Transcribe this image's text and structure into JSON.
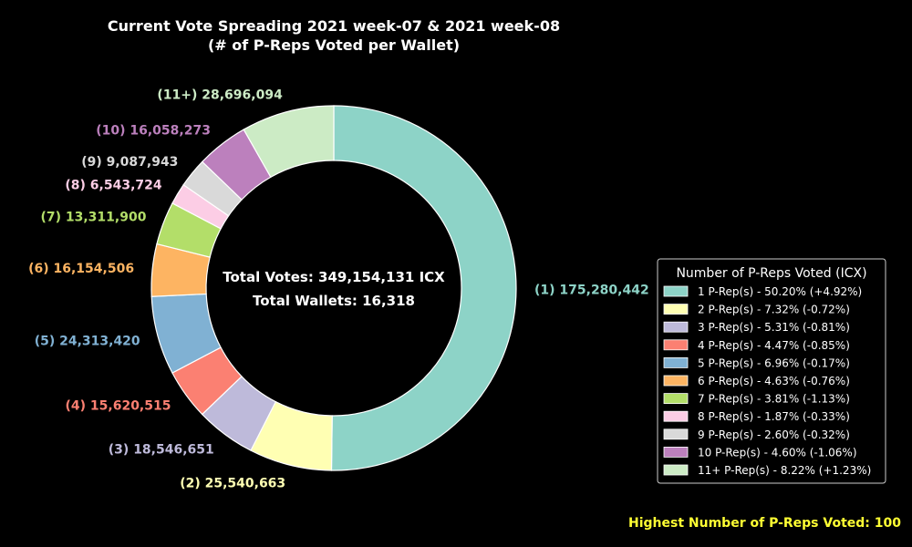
{
  "chart_data": {
    "type": "pie",
    "style": "donut",
    "title_lines": [
      "Current Vote Spreading 2021 week-07 & 2021 week-08",
      "(# of P-Reps Voted per Wallet)"
    ],
    "center_lines": [
      "Total Votes: 349,154,131 ICX",
      "Total Wallets: 16,318"
    ],
    "slices": [
      {
        "label": "(1) 175,280,442",
        "value": 175280442,
        "color": "#8dd3c7",
        "legend": "1 P-Rep(s) - 50.20% (+4.92%)"
      },
      {
        "label": "(2) 25,540,663",
        "value": 25540663,
        "color": "#ffffb3",
        "legend": "2 P-Rep(s) - 7.32% (-0.72%)"
      },
      {
        "label": "(3) 18,546,651",
        "value": 18546651,
        "color": "#bebada",
        "legend": "3 P-Rep(s) - 5.31% (-0.81%)"
      },
      {
        "label": "(4) 15,620,515",
        "value": 15620515,
        "color": "#fb8072",
        "legend": "4 P-Rep(s) - 4.47% (-0.85%)"
      },
      {
        "label": "(5) 24,313,420",
        "value": 24313420,
        "color": "#80b1d3",
        "legend": "5 P-Rep(s) - 6.96% (-0.17%)"
      },
      {
        "label": "(6) 16,154,506",
        "value": 16154506,
        "color": "#fdb462",
        "legend": "6 P-Rep(s) - 4.63% (-0.76%)"
      },
      {
        "label": "(7) 13,311,900",
        "value": 13311900,
        "color": "#b3de69",
        "legend": "7 P-Rep(s) - 3.81% (-1.13%)"
      },
      {
        "label": "(8) 6,543,724",
        "value": 6543724,
        "color": "#fccde5",
        "legend": "8 P-Rep(s) - 1.87% (-0.33%)"
      },
      {
        "label": "(9) 9,087,943",
        "value": 9087943,
        "color": "#d9d9d9",
        "legend": "9 P-Rep(s) - 2.60% (-0.32%)"
      },
      {
        "label": "(10) 16,058,273",
        "value": 16058273,
        "color": "#bc80bd",
        "legend": "10 P-Rep(s) - 4.60% (-1.06%)"
      },
      {
        "label": "(11+) 28,696,094",
        "value": 28696094,
        "color": "#ccebc5",
        "legend": "11+ P-Rep(s) - 8.22% (+1.23%)"
      }
    ],
    "start_angle": "top (12 o'clock)",
    "direction": "clockwise",
    "legend_title": "Number of P-Reps Voted (ICX)",
    "legend_placement": "right",
    "footnote": "Highest Number of P-Reps Voted: 100",
    "footnote_color": "#ffff33"
  }
}
